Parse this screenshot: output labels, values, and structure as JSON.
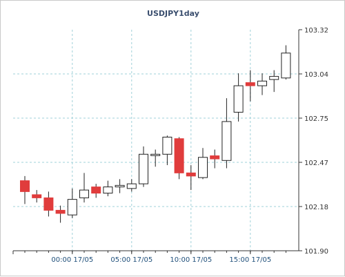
{
  "chart_data": {
    "type": "candlestick",
    "title": "USDJPY1day",
    "y_ticks": [
      "103.32",
      "103.04",
      "102.75",
      "102.47",
      "102.18",
      "101.90"
    ],
    "ylim": [
      101.9,
      103.32
    ],
    "x_ticks": [
      "00:00 17/05",
      "05:00 17/05",
      "10:00 17/05",
      "15:00 17/05"
    ],
    "x_tick_positions": [
      4,
      9,
      14,
      19
    ],
    "grid": true,
    "up_color": "#ffffff",
    "down_color": "#e03c3c",
    "candles": [
      {
        "o": 102.35,
        "h": 102.38,
        "l": 102.2,
        "c": 102.28
      },
      {
        "o": 102.26,
        "h": 102.29,
        "l": 102.21,
        "c": 102.24
      },
      {
        "o": 102.24,
        "h": 102.28,
        "l": 102.12,
        "c": 102.16
      },
      {
        "o": 102.16,
        "h": 102.19,
        "l": 102.08,
        "c": 102.14
      },
      {
        "o": 102.13,
        "h": 102.3,
        "l": 102.11,
        "c": 102.23
      },
      {
        "o": 102.24,
        "h": 102.4,
        "l": 102.21,
        "c": 102.29
      },
      {
        "o": 102.31,
        "h": 102.33,
        "l": 102.24,
        "c": 102.27
      },
      {
        "o": 102.27,
        "h": 102.35,
        "l": 102.25,
        "c": 102.31
      },
      {
        "o": 102.31,
        "h": 102.36,
        "l": 102.27,
        "c": 102.32
      },
      {
        "o": 102.3,
        "h": 102.36,
        "l": 102.28,
        "c": 102.33
      },
      {
        "o": 102.33,
        "h": 102.57,
        "l": 102.31,
        "c": 102.52
      },
      {
        "o": 102.52,
        "h": 102.55,
        "l": 102.44,
        "c": 102.52
      },
      {
        "o": 102.52,
        "h": 102.64,
        "l": 102.45,
        "c": 102.63
      },
      {
        "o": 102.62,
        "h": 102.63,
        "l": 102.36,
        "c": 102.4
      },
      {
        "o": 102.4,
        "h": 102.45,
        "l": 102.29,
        "c": 102.38
      },
      {
        "o": 102.37,
        "h": 102.56,
        "l": 102.36,
        "c": 102.5
      },
      {
        "o": 102.51,
        "h": 102.55,
        "l": 102.43,
        "c": 102.49
      },
      {
        "o": 102.48,
        "h": 102.88,
        "l": 102.43,
        "c": 102.73
      },
      {
        "o": 102.79,
        "h": 103.04,
        "l": 102.73,
        "c": 102.96
      },
      {
        "o": 102.98,
        "h": 103.06,
        "l": 102.86,
        "c": 102.96
      },
      {
        "o": 102.96,
        "h": 103.04,
        "l": 102.9,
        "c": 102.99
      },
      {
        "o": 103.0,
        "h": 103.06,
        "l": 102.92,
        "c": 103.02
      },
      {
        "o": 103.01,
        "h": 103.22,
        "l": 103.0,
        "c": 103.17
      }
    ]
  }
}
